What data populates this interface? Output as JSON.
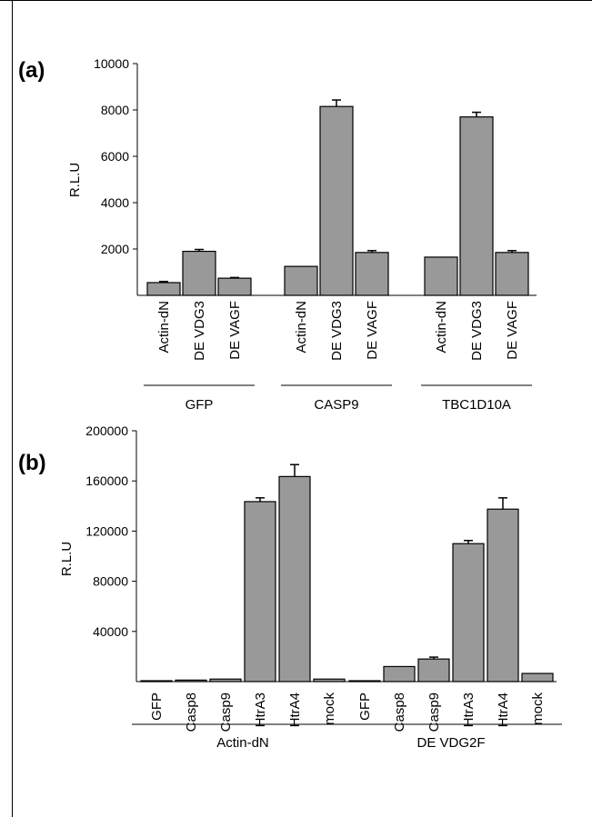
{
  "chart_data": [
    {
      "type": "bar",
      "panel_label": "(a)",
      "ylabel": "R.L.U",
      "xlabel": "",
      "ylim": [
        0,
        10000
      ],
      "yticks": [
        2000,
        4000,
        6000,
        8000,
        10000
      ],
      "grid": false,
      "bar_color": "#999999",
      "groups": [
        {
          "name": "GFP",
          "categories": [
            "Actin-dN",
            "DE VDG3",
            "DE VAGF"
          ],
          "values": [
            550,
            1900,
            740
          ],
          "errors": [
            50,
            80,
            30
          ]
        },
        {
          "name": "CASP9",
          "categories": [
            "Actin-dN",
            "DE VDG3",
            "DE VAGF"
          ],
          "values": [
            1250,
            8150,
            1850
          ],
          "errors": [
            0,
            280,
            80
          ]
        },
        {
          "name": "TBC1D10A",
          "categories": [
            "Actin-dN",
            "DE VDG3",
            "DE VAGF"
          ],
          "values": [
            1650,
            7700,
            1850
          ],
          "errors": [
            0,
            200,
            80
          ]
        }
      ]
    },
    {
      "type": "bar",
      "panel_label": "(b)",
      "ylabel": "R.L.U",
      "xlabel": "",
      "ylim": [
        0,
        200000
      ],
      "yticks": [
        40000,
        80000,
        120000,
        160000,
        200000
      ],
      "grid": false,
      "bar_color": "#999999",
      "groups": [
        {
          "name": "Actin-dN",
          "categories": [
            "GFP",
            "Casp8",
            "Casp9",
            "HtrA3",
            "HtrA4",
            "mock"
          ],
          "values": [
            700,
            1200,
            2000,
            143500,
            163500,
            2000
          ],
          "errors": [
            0,
            0,
            0,
            3000,
            9500,
            0
          ]
        },
        {
          "name": "DE VDG2F",
          "categories": [
            "GFP",
            "Casp8",
            "Casp9",
            "HtrA3",
            "HtrA4",
            "mock"
          ],
          "values": [
            700,
            12000,
            18000,
            110000,
            137500,
            6500
          ],
          "errors": [
            0,
            0,
            1500,
            2500,
            9000,
            0
          ]
        }
      ]
    }
  ]
}
